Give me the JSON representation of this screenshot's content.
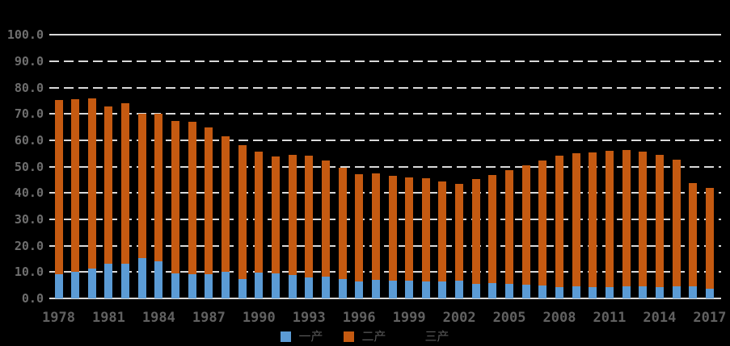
{
  "chart_data": {
    "type": "bar",
    "stacked": true,
    "title": "",
    "background": "#000000",
    "grid": "horizontal, dashed light-gray #D9D9D9, top and bottom lines solid",
    "legend_position": "bottom-center",
    "ylim": [
      0,
      100
    ],
    "ytick_step": 10,
    "ytick_labels": [
      "0.0",
      "10.0",
      "20.0",
      "30.0",
      "40.0",
      "50.0",
      "60.0",
      "70.0",
      "80.0",
      "90.0",
      "100.0"
    ],
    "xtick_labels": [
      "1978",
      "1981",
      "1984",
      "1987",
      "1990",
      "1993",
      "1996",
      "1999",
      "2002",
      "2005",
      "2008",
      "2011",
      "2014",
      "2017"
    ],
    "x": [
      1978,
      1979,
      1980,
      1981,
      1982,
      1983,
      1984,
      1985,
      1986,
      1987,
      1988,
      1989,
      1990,
      1991,
      1992,
      1993,
      1994,
      1995,
      1996,
      1997,
      1998,
      1999,
      2000,
      2001,
      2002,
      2003,
      2004,
      2005,
      2006,
      2007,
      2008,
      2009,
      2010,
      2011,
      2012,
      2013,
      2014,
      2015,
      2016,
      2017
    ],
    "series": [
      {
        "name": "一产",
        "color": "#5B9BD5",
        "values": [
          9.2,
          10.0,
          11.3,
          13.3,
          13.1,
          15.3,
          14.2,
          9.4,
          9.1,
          9.2,
          10.0,
          7.3,
          9.7,
          9.4,
          8.8,
          8.1,
          8.2,
          7.3,
          6.5,
          6.9,
          6.7,
          6.6,
          6.4,
          6.4,
          6.6,
          5.4,
          5.7,
          5.4,
          5.2,
          5.0,
          4.4,
          4.6,
          4.3,
          4.4,
          4.5,
          4.7,
          4.3,
          4.5,
          4.7,
          3.8
        ]
      },
      {
        "name": "二产",
        "color": "#C55A11",
        "values": [
          66.2,
          65.5,
          64.5,
          59.6,
          60.9,
          54.9,
          55.8,
          57.9,
          57.8,
          55.7,
          51.6,
          51.0,
          45.9,
          44.6,
          45.8,
          46.0,
          44.2,
          42.2,
          40.6,
          40.6,
          39.9,
          39.3,
          39.2,
          38.0,
          37.0,
          40.0,
          41.1,
          43.4,
          45.2,
          47.3,
          49.9,
          50.5,
          51.0,
          51.7,
          51.7,
          51.0,
          50.3,
          48.3,
          39.2,
          38.1
        ]
      },
      {
        "name": "三产",
        "color": "#000000",
        "values": [],
        "note": "legend entry visible but bars invisible (black on black background)"
      }
    ],
    "legend": [
      {
        "label": "一产",
        "color": "#5B9BD5"
      },
      {
        "label": "二产",
        "color": "#C55A11"
      },
      {
        "label": "三产",
        "color": "#000000"
      }
    ],
    "axis_label_color": "#666666"
  }
}
